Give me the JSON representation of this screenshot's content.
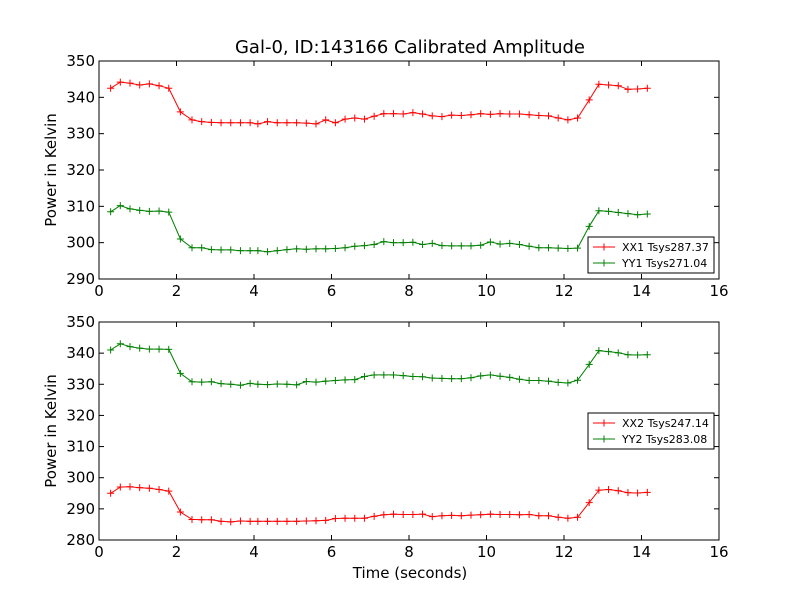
{
  "figure": {
    "title": "Gal-0, ID:143166 Calibrated Amplitude",
    "xlabel": "Time (seconds)"
  },
  "colors": {
    "red": "#ff0000",
    "green": "#008000"
  },
  "chart_data": [
    {
      "type": "line",
      "title": "Gal-0, ID:143166 Calibrated Amplitude",
      "xlabel": "",
      "ylabel": "Power in Kelvin",
      "xlim": [
        0,
        16
      ],
      "ylim": [
        290,
        350
      ],
      "xticks": [
        "0",
        "2",
        "4",
        "6",
        "8",
        "10",
        "12",
        "14",
        "16"
      ],
      "yticks": [
        "290",
        "300",
        "310",
        "320",
        "330",
        "340",
        "350"
      ],
      "legend_position": "lower-right",
      "x": [
        0.3,
        0.55,
        0.8,
        1.05,
        1.3,
        1.55,
        1.8,
        2.1,
        2.4,
        2.65,
        2.9,
        3.15,
        3.4,
        3.65,
        3.9,
        4.1,
        4.35,
        4.6,
        4.85,
        5.1,
        5.35,
        5.6,
        5.85,
        6.1,
        6.35,
        6.6,
        6.85,
        7.1,
        7.35,
        7.6,
        7.85,
        8.1,
        8.35,
        8.6,
        8.85,
        9.1,
        9.35,
        9.6,
        9.85,
        10.1,
        10.35,
        10.6,
        10.85,
        11.1,
        11.35,
        11.6,
        11.85,
        12.1,
        12.35,
        12.65,
        12.9,
        13.15,
        13.4,
        13.65,
        13.9,
        14.15
      ],
      "series": [
        {
          "name": "XX1 Tsys287.37",
          "color": "red",
          "values": [
            342.5,
            344.2,
            343.9,
            343.4,
            343.7,
            343.2,
            342.5,
            336.0,
            333.8,
            333.3,
            333.1,
            333.0,
            333.0,
            333.0,
            333.0,
            332.7,
            333.3,
            333.0,
            333.0,
            333.0,
            332.9,
            332.7,
            333.8,
            333.0,
            334.0,
            334.3,
            334.0,
            334.8,
            335.5,
            335.5,
            335.4,
            335.8,
            335.4,
            334.9,
            334.7,
            335.1,
            335.0,
            335.2,
            335.5,
            335.3,
            335.5,
            335.4,
            335.4,
            335.2,
            335.0,
            334.9,
            334.3,
            333.8,
            334.3,
            339.3,
            343.6,
            343.4,
            343.2,
            342.2,
            342.3,
            342.5
          ]
        },
        {
          "name": "YY1 Tsys271.04",
          "color": "green",
          "values": [
            308.5,
            310.2,
            309.3,
            308.9,
            308.6,
            308.7,
            308.4,
            301.0,
            298.6,
            298.6,
            298.1,
            298.0,
            298.0,
            297.8,
            297.8,
            297.8,
            297.5,
            297.8,
            298.1,
            298.3,
            298.2,
            298.3,
            298.3,
            298.4,
            298.6,
            299.0,
            299.2,
            299.5,
            300.3,
            300.0,
            300.0,
            300.1,
            299.5,
            299.8,
            299.2,
            299.1,
            299.1,
            299.1,
            299.3,
            300.2,
            299.6,
            299.8,
            299.5,
            299.0,
            298.6,
            298.6,
            298.5,
            298.4,
            298.5,
            304.5,
            308.8,
            308.6,
            308.3,
            308.0,
            307.7,
            307.9
          ]
        }
      ]
    },
    {
      "type": "line",
      "title": "",
      "xlabel": "Time (seconds)",
      "ylabel": "Power in Kelvin",
      "xlim": [
        0,
        16
      ],
      "ylim": [
        280,
        350
      ],
      "xticks": [
        "0",
        "2",
        "4",
        "6",
        "8",
        "10",
        "12",
        "14",
        "16"
      ],
      "yticks": [
        "280",
        "290",
        "300",
        "310",
        "320",
        "330",
        "340",
        "350"
      ],
      "legend_position": "center-right",
      "x": [
        0.3,
        0.55,
        0.8,
        1.05,
        1.3,
        1.55,
        1.8,
        2.1,
        2.4,
        2.65,
        2.9,
        3.15,
        3.4,
        3.65,
        3.9,
        4.1,
        4.35,
        4.6,
        4.85,
        5.1,
        5.35,
        5.6,
        5.85,
        6.1,
        6.35,
        6.6,
        6.85,
        7.1,
        7.35,
        7.6,
        7.85,
        8.1,
        8.35,
        8.6,
        8.85,
        9.1,
        9.35,
        9.6,
        9.85,
        10.1,
        10.35,
        10.6,
        10.85,
        11.1,
        11.35,
        11.6,
        11.85,
        12.1,
        12.35,
        12.65,
        12.9,
        13.15,
        13.4,
        13.65,
        13.9,
        14.15
      ],
      "series": [
        {
          "name": "XX2 Tsys247.14",
          "color": "red",
          "values": [
            295.0,
            297.0,
            297.1,
            296.8,
            296.6,
            296.2,
            295.7,
            289.0,
            286.6,
            286.5,
            286.5,
            286.0,
            285.8,
            286.1,
            286.0,
            286.0,
            286.0,
            286.0,
            286.0,
            286.0,
            286.1,
            286.2,
            286.3,
            286.9,
            287.0,
            287.0,
            287.0,
            287.6,
            288.1,
            288.3,
            288.2,
            288.2,
            288.3,
            287.5,
            287.8,
            287.9,
            287.8,
            288.0,
            288.1,
            288.3,
            288.2,
            288.2,
            288.1,
            288.2,
            287.8,
            287.8,
            287.3,
            287.0,
            287.3,
            292.0,
            296.0,
            296.2,
            295.8,
            295.2,
            295.1,
            295.3
          ]
        },
        {
          "name": "YY2 Tsys283.08",
          "color": "green",
          "values": [
            341.0,
            343.0,
            342.1,
            341.6,
            341.3,
            341.3,
            341.2,
            333.5,
            330.8,
            330.7,
            330.8,
            330.2,
            330.0,
            329.7,
            330.3,
            330.0,
            329.9,
            330.1,
            330.0,
            329.8,
            330.9,
            330.7,
            331.0,
            331.2,
            331.4,
            331.5,
            332.5,
            333.0,
            333.0,
            333.0,
            332.8,
            332.5,
            332.4,
            332.0,
            331.9,
            331.8,
            331.8,
            332.1,
            332.7,
            333.0,
            332.6,
            332.2,
            331.6,
            331.2,
            331.2,
            331.0,
            330.6,
            330.4,
            331.3,
            336.4,
            340.8,
            340.5,
            340.1,
            339.5,
            339.4,
            339.5
          ]
        }
      ]
    }
  ]
}
